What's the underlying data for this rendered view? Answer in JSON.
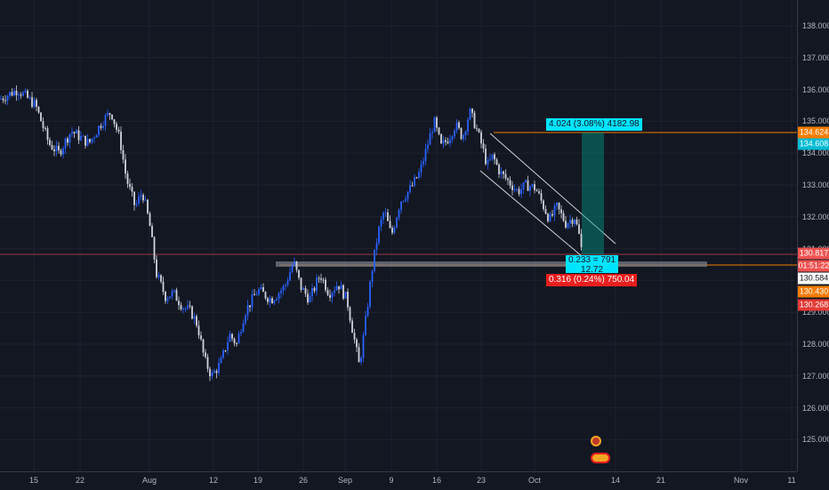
{
  "chart": {
    "y_axis_ticks": [
      "138.000",
      "137.000",
      "136.000",
      "135.000",
      "134.000",
      "133.000",
      "132.000",
      "131.000",
      "130.000",
      "129.000",
      "128.000",
      "127.000",
      "126.000",
      "125.000"
    ],
    "x_axis_ticks": [
      "15",
      "22",
      "Aug",
      "12",
      "19",
      "26",
      "Sep",
      "9",
      "16",
      "23",
      "Oct",
      "14",
      "21",
      "Nov",
      "11"
    ],
    "price_tags": [
      {
        "label": "134.624",
        "bg": "#f57c00",
        "fg": "#ffffff"
      },
      {
        "label": "134.608",
        "bg": "#00bcd4",
        "fg": "#ffffff"
      },
      {
        "label": "130.817",
        "bg": "#ef5350",
        "fg": "#ffffff"
      },
      {
        "label": "01:51:22",
        "bg": "#ef5350",
        "fg": "#ffffff"
      },
      {
        "label": "130.584",
        "bg": "#ffffff",
        "fg": "#131722"
      },
      {
        "label": "130.430",
        "bg": "#f57c00",
        "fg": "#ffffff"
      },
      {
        "label": "130.268",
        "bg": "#e53935",
        "fg": "#ffffff"
      }
    ],
    "projection_top": "4.024 (3.08%) 4182.98",
    "projection_mid_1": "0.233 = 791",
    "projection_mid_2": "12.72",
    "projection_bottom": "0.316 (0.24%) 750.04",
    "colors": {
      "background": "#131722",
      "bull": "#2962ff",
      "bear": "#d1d4dc",
      "target": "#00bcd4",
      "stop": "#e91e1e",
      "resistance": "#f57c00",
      "red_line": "#ef5350"
    }
  }
}
